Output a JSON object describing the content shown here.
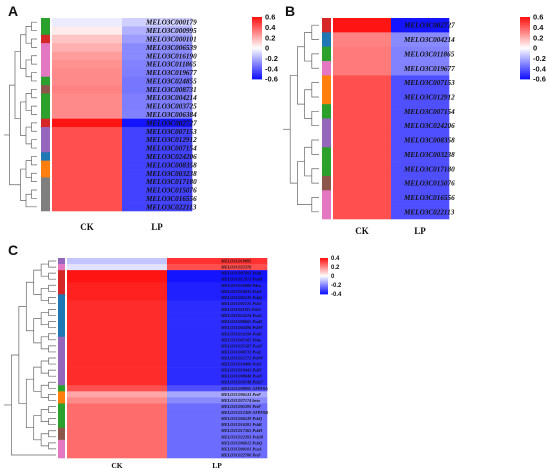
{
  "chart_data": [
    {
      "panel": "A",
      "type": "heatmap",
      "columns": [
        "CK",
        "LP"
      ],
      "rows": [
        {
          "label": "MELO3C000179",
          "values": [
            -0.05,
            -0.12
          ]
        },
        {
          "label": "MELO3C000995",
          "values": [
            0.05,
            -0.2
          ]
        },
        {
          "label": "MELO3C000101",
          "values": [
            0.15,
            -0.25
          ]
        },
        {
          "label": "MELO3C006539",
          "values": [
            0.2,
            -0.3
          ]
        },
        {
          "label": "MELO3C016190",
          "values": [
            0.25,
            -0.3
          ]
        },
        {
          "label": "MELO3C011865",
          "values": [
            0.28,
            -0.32
          ]
        },
        {
          "label": "MELO3C019677",
          "values": [
            0.3,
            -0.33
          ]
        },
        {
          "label": "MELO3C024855",
          "values": [
            0.3,
            -0.35
          ]
        },
        {
          "label": "MELO3C008731",
          "values": [
            0.32,
            -0.35
          ]
        },
        {
          "label": "MELO3C004214",
          "values": [
            0.3,
            -0.33
          ]
        },
        {
          "label": "MELO3C003725",
          "values": [
            0.3,
            -0.33
          ]
        },
        {
          "label": "MELO3C006384",
          "values": [
            0.3,
            -0.32
          ]
        },
        {
          "label": "MELO3C002727",
          "values": [
            0.62,
            -0.62
          ]
        },
        {
          "label": "MELO3C007153",
          "values": [
            0.45,
            -0.48
          ]
        },
        {
          "label": "MELO3C012912",
          "values": [
            0.45,
            -0.48
          ]
        },
        {
          "label": "MELO3C007154",
          "values": [
            0.45,
            -0.48
          ]
        },
        {
          "label": "MELO3C024206",
          "values": [
            0.45,
            -0.48
          ]
        },
        {
          "label": "MELO3C008358",
          "values": [
            0.45,
            -0.48
          ]
        },
        {
          "label": "MELO3C003238",
          "values": [
            0.45,
            -0.48
          ]
        },
        {
          "label": "MELO3C017180",
          "values": [
            0.45,
            -0.48
          ]
        },
        {
          "label": "MELO3C015076",
          "values": [
            0.45,
            -0.48
          ]
        },
        {
          "label": "MELO3C016556",
          "values": [
            0.45,
            -0.48
          ]
        },
        {
          "label": "MELO3C022113",
          "values": [
            0.45,
            -0.48
          ]
        }
      ],
      "row_group_colors": [
        "#2ca02c",
        "#2ca02c",
        "#d62728",
        "#e377c2",
        "#e377c2",
        "#e377c2",
        "#e377c2",
        "#2ca02c",
        "#8c564b",
        "#2ca02c",
        "#2ca02c",
        "#2ca02c",
        "#d62728",
        "#9467bd",
        "#9467bd",
        "#9467bd",
        "#1f77b4",
        "#ff7f0e",
        "#ff7f0e",
        "#7f7f7f",
        "#7f7f7f",
        "#7f7f7f",
        "#7f7f7f"
      ],
      "colorbar": {
        "min": -0.6,
        "max": 0.6,
        "ticks": [
          "0.6",
          "0.4",
          "0.2",
          "0",
          "-0.2",
          "-0.4",
          "-0.6"
        ]
      }
    },
    {
      "panel": "B",
      "type": "heatmap",
      "columns": [
        "CK",
        "LP"
      ],
      "rows": [
        {
          "label": "MELO3C002727",
          "values": [
            0.62,
            -0.62
          ]
        },
        {
          "label": "MELO3C004214",
          "values": [
            0.32,
            -0.3
          ]
        },
        {
          "label": "MELO3C011865",
          "values": [
            0.34,
            -0.32
          ]
        },
        {
          "label": "MELO3C019677",
          "values": [
            0.34,
            -0.32
          ]
        },
        {
          "label": "MELO3C007153",
          "values": [
            0.45,
            -0.45
          ]
        },
        {
          "label": "MELO3C012912",
          "values": [
            0.45,
            -0.45
          ]
        },
        {
          "label": "MELO3C007154",
          "values": [
            0.45,
            -0.45
          ]
        },
        {
          "label": "MELO3C024206",
          "values": [
            0.45,
            -0.45
          ]
        },
        {
          "label": "MELO3C008358",
          "values": [
            0.45,
            -0.45
          ]
        },
        {
          "label": "MELO3C003238",
          "values": [
            0.45,
            -0.45
          ]
        },
        {
          "label": "MELO3C017180",
          "values": [
            0.45,
            -0.45
          ]
        },
        {
          "label": "MELO3C015076",
          "values": [
            0.45,
            -0.45
          ]
        },
        {
          "label": "MELO3C016556",
          "values": [
            0.45,
            -0.45
          ]
        },
        {
          "label": "MELO3C022113",
          "values": [
            0.45,
            -0.45
          ]
        }
      ],
      "row_group_colors": [
        "#d62728",
        "#1f77b4",
        "#2ca02c",
        "#e377c2",
        "#ff7f0e",
        "#ff7f0e",
        "#2ca02c",
        "#9467bd",
        "#9467bd",
        "#2ca02c",
        "#2ca02c",
        "#8c564b",
        "#e377c2",
        "#e377c2"
      ],
      "colorbar": {
        "min": -0.6,
        "max": 0.6,
        "ticks": [
          "0.6",
          "0.4",
          "0.2",
          "0",
          "-0.2",
          "-0.4",
          "-0.6"
        ]
      }
    },
    {
      "panel": "C",
      "type": "heatmap",
      "columns": [
        "CK",
        "LP"
      ],
      "rows": [
        {
          "label": "MELO3C019895",
          "values": [
            -0.1,
            0.35
          ]
        },
        {
          "label": "MELO3C025376",
          "values": [
            -0.05,
            0.3
          ]
        },
        {
          "label": "MELO3C007091 PsaK",
          "values": [
            0.4,
            -0.4
          ]
        },
        {
          "label": "MELO3C012971 PsaH",
          "values": [
            0.4,
            -0.4
          ]
        },
        {
          "label": "MELO3C010680 Pdra",
          "values": [
            0.38,
            -0.38
          ]
        },
        {
          "label": "MELO3C018835 PsbA",
          "values": [
            0.38,
            -0.38
          ]
        },
        {
          "label": "MELO3C002510 PsbQ",
          "values": [
            0.38,
            -0.38
          ]
        },
        {
          "label": "MELO3C005725 PsbY",
          "values": [
            0.36,
            -0.36
          ]
        },
        {
          "label": "MELO3C011911 PsbS",
          "values": [
            0.36,
            -0.36
          ]
        },
        {
          "label": "MELO3C014124 PsaG",
          "values": [
            0.36,
            -0.36
          ]
        },
        {
          "label": "MELO3C008665 PsaD",
          "values": [
            0.36,
            -0.36
          ]
        },
        {
          "label": "MELO3C004386 PsbW",
          "values": [
            0.36,
            -0.36
          ]
        },
        {
          "label": "MELO3C016190 PsbP",
          "values": [
            0.36,
            -0.36
          ]
        },
        {
          "label": "MELO3C007507 Psbo",
          "values": [
            0.36,
            -0.36
          ]
        },
        {
          "label": "MELO3C025587 PsaN",
          "values": [
            0.36,
            -0.36
          ]
        },
        {
          "label": "MELO3C008731 PsaL",
          "values": [
            0.36,
            -0.36
          ]
        },
        {
          "label": "MELO3C015772 PsbW",
          "values": [
            0.36,
            -0.36
          ]
        },
        {
          "label": "MELO3C019400 PsbY",
          "values": [
            0.36,
            -0.36
          ]
        },
        {
          "label": "MELO3C019441 PsbY",
          "values": [
            0.36,
            -0.36
          ]
        },
        {
          "label": "MELO3C008048 PsaN",
          "values": [
            0.36,
            -0.36
          ]
        },
        {
          "label": "MELO3C018748 Psb27",
          "values": [
            0.36,
            -0.36
          ]
        },
        {
          "label": "MELO3C008995 ATPF0A",
          "values": [
            0.3,
            -0.3
          ]
        },
        {
          "label": "MELO3C006533 PetF",
          "values": [
            0.15,
            -0.15
          ]
        },
        {
          "label": "MELO3C027174 beta",
          "values": [
            0.2,
            -0.2
          ]
        },
        {
          "label": "MELO3C005395 PetF",
          "values": [
            0.25,
            -0.25
          ]
        },
        {
          "label": "MELO3C012369 ATPF0B",
          "values": [
            0.25,
            -0.25
          ]
        },
        {
          "label": "MELO3C006539 PsbQ",
          "values": [
            0.25,
            -0.25
          ]
        },
        {
          "label": "MELO3C016281 PsbR",
          "values": [
            0.25,
            -0.25
          ]
        },
        {
          "label": "MELO3C017365 PsbH",
          "values": [
            0.25,
            -0.25
          ]
        },
        {
          "label": "MELO3C022393 Psb28",
          "values": [
            0.25,
            -0.25
          ]
        },
        {
          "label": "MELO3C006812 PsbQ",
          "values": [
            0.25,
            -0.25
          ]
        },
        {
          "label": "MELO3C000101 PsaA",
          "values": [
            0.25,
            -0.25
          ]
        },
        {
          "label": "MELO3C022780 PetF",
          "values": [
            0.25,
            -0.25
          ]
        }
      ],
      "row_group_colors": [
        "#9467bd",
        "#e377c2",
        "#d62728",
        "#d62728",
        "#d62728",
        "#d62728",
        "#1f77b4",
        "#1f77b4",
        "#1f77b4",
        "#1f77b4",
        "#1f77b4",
        "#1f77b4",
        "#1f77b4",
        "#9467bd",
        "#9467bd",
        "#9467bd",
        "#9467bd",
        "#9467bd",
        "#9467bd",
        "#9467bd",
        "#9467bd",
        "#2ca02c",
        "#ff7f0e",
        "#ff7f0e",
        "#2ca02c",
        "#2ca02c",
        "#2ca02c",
        "#2ca02c",
        "#8c564b",
        "#8c564b",
        "#e377c2",
        "#e377c2",
        "#e377c2"
      ],
      "colorbar": {
        "min": -0.4,
        "max": 0.4,
        "ticks": [
          "0.4",
          "0.2",
          "0",
          "-0.2",
          "-0.4"
        ]
      }
    }
  ]
}
